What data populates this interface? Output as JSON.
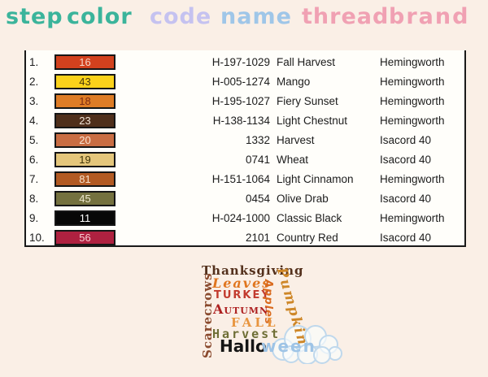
{
  "colors": {
    "background": "#FAEFE6",
    "table_background": "#FFFEFA",
    "table_border": "#1A1A1A",
    "cloud_outline": "#BFD8EC"
  },
  "header": {
    "words": [
      {
        "id": "step",
        "label": "Step",
        "color": "#3BB49B"
      },
      {
        "id": "color",
        "label": "Color",
        "color": "#3BB49B"
      },
      {
        "id": "code",
        "label": "Code",
        "color": "#C5C2F0"
      },
      {
        "id": "name",
        "label": "Name",
        "color": "#9FC6E8"
      },
      {
        "id": "thread",
        "label": "Thread",
        "color": "#F0A1B3"
      },
      {
        "id": "brand",
        "label": "Brand",
        "color": "#F0A1B3"
      }
    ]
  },
  "table": {
    "rows": [
      {
        "step": "1.",
        "swatch_num": "16",
        "swatch_bg": "#D2411E",
        "swatch_fg": "#F6D7C8",
        "code": "H-197-1029",
        "name": "Fall Harvest",
        "brand": "Hemingworth"
      },
      {
        "step": "2.",
        "swatch_num": "43",
        "swatch_bg": "#FBD21B",
        "swatch_fg": "#46350A",
        "code": "H-005-1274",
        "name": "Mango",
        "brand": "Hemingworth"
      },
      {
        "step": "3.",
        "swatch_num": "18",
        "swatch_bg": "#DE7C26",
        "swatch_fg": "#7E2B12",
        "code": "H-195-1027",
        "name": "Fiery Sunset",
        "brand": "Hemingworth"
      },
      {
        "step": "4.",
        "swatch_num": "23",
        "swatch_bg": "#4F2F1B",
        "swatch_fg": "#F0E3D6",
        "code": "H-138-1134",
        "name": "Light Chestnut",
        "brand": "Hemingworth"
      },
      {
        "step": "5.",
        "swatch_num": "20",
        "swatch_bg": "#C96D43",
        "swatch_fg": "#FAE3D2",
        "code": "1332",
        "name": "Harvest",
        "brand": "Isacord 40"
      },
      {
        "step": "6.",
        "swatch_num": "19",
        "swatch_bg": "#E4C67B",
        "swatch_fg": "#3F3408",
        "code": "0741",
        "name": "Wheat",
        "brand": "Isacord 40"
      },
      {
        "step": "7.",
        "swatch_num": "81",
        "swatch_bg": "#B25A23",
        "swatch_fg": "#F7E1CC",
        "code": "H-151-1064",
        "name": "Light Cinnamon",
        "brand": "Hemingworth"
      },
      {
        "step": "8.",
        "swatch_num": "45",
        "swatch_bg": "#74713F",
        "swatch_fg": "#EFE9CF",
        "code": "0454",
        "name": "Olive Drab",
        "brand": "Isacord 40"
      },
      {
        "step": "9.",
        "swatch_num": "11",
        "swatch_bg": "#070707",
        "swatch_fg": "#FFFFFF",
        "code": "H-024-1000",
        "name": "Classic Black",
        "brand": "Hemingworth"
      },
      {
        "step": "10.",
        "swatch_num": "56",
        "swatch_bg": "#AF2140",
        "swatch_fg": "#F8CDD3",
        "code": "2101",
        "name": "Country Red",
        "brand": "Isacord 40"
      }
    ]
  },
  "wordart": {
    "words": [
      {
        "id": "thanksgiving",
        "label": "Thanksgiving",
        "color": "#53301C"
      },
      {
        "id": "scarecrows",
        "label": "Scarecrows",
        "color": "#8A4A2E"
      },
      {
        "id": "leaves",
        "label": "Leaves",
        "color": "#E0761F"
      },
      {
        "id": "turkey",
        "label": "Turkey",
        "color": "#C23B2E"
      },
      {
        "id": "apples",
        "label": "Apples",
        "color": "#D96A1E"
      },
      {
        "id": "autumn",
        "label": "Autumn",
        "color": "#AD1F1F"
      },
      {
        "id": "pumpkin",
        "label": "Pumpkin",
        "color": "#CE8728"
      },
      {
        "id": "fall",
        "label": "FALL",
        "color": "#E8953F"
      },
      {
        "id": "harvest",
        "label": "Harvest",
        "color": "#6E6E35"
      },
      {
        "id": "halloween-hallo",
        "label": "Hallo",
        "color": "#151515"
      },
      {
        "id": "halloween-ween",
        "label": "ween",
        "color": "#9EC4E6"
      }
    ]
  }
}
